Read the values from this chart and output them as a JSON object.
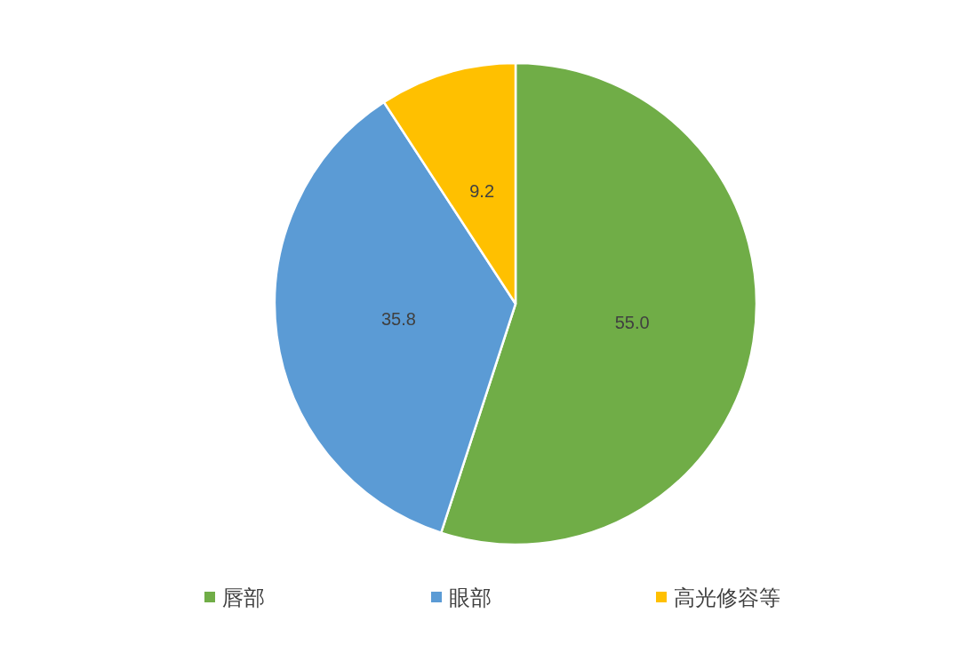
{
  "chart_data": {
    "type": "pie",
    "categories": [
      "唇部",
      "眼部",
      "高光修容等"
    ],
    "values": [
      55.0,
      35.8,
      9.2
    ],
    "colors": [
      "#70ad47",
      "#5b9bd5",
      "#ffc000"
    ],
    "value_labels": [
      "55.0",
      "35.8",
      "9.2"
    ],
    "legend": "bottom"
  }
}
